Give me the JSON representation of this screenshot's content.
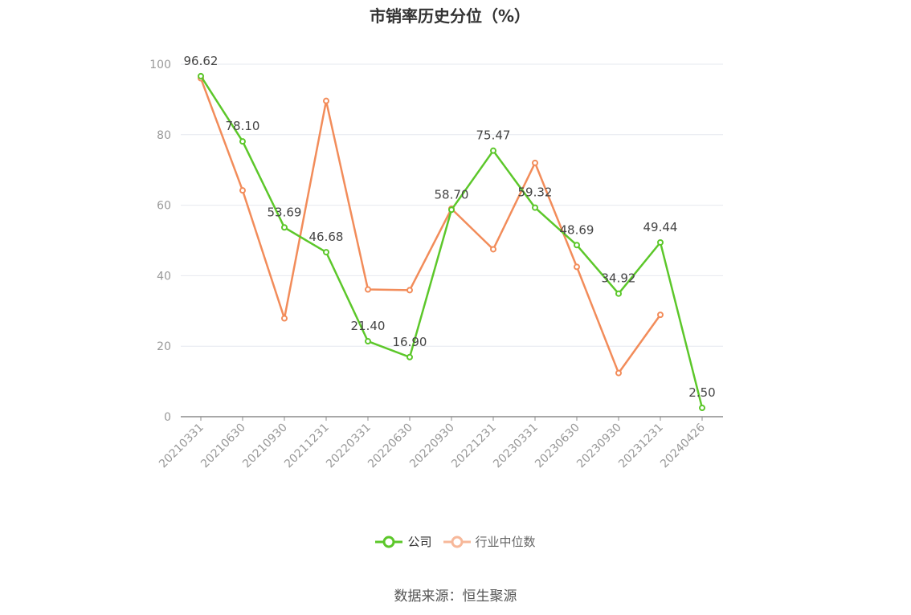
{
  "chart_data": {
    "type": "line",
    "title": "市销率历史分位（%）",
    "categories": [
      "20210331",
      "20210630",
      "20210930",
      "20211231",
      "20220331",
      "20220630",
      "20220930",
      "20221231",
      "20230331",
      "20230630",
      "20230930",
      "20231231",
      "20240426"
    ],
    "ylim": [
      0,
      100
    ],
    "yticks": [
      "0",
      "20",
      "40",
      "60",
      "80",
      "100"
    ],
    "grid": true,
    "legend_position": "bottom",
    "series": [
      {
        "name": "公司",
        "color": "#5cc72a",
        "values": [
          96.62,
          78.1,
          53.69,
          46.68,
          21.4,
          16.9,
          58.7,
          75.47,
          59.32,
          48.69,
          34.92,
          49.44,
          2.5
        ],
        "labels": [
          "96.62",
          "78.10",
          "53.69",
          "46.68",
          "21.40",
          "16.90",
          "58.70",
          "75.47",
          "59.32",
          "48.69",
          "34.92",
          "49.44",
          "2.50"
        ]
      },
      {
        "name": "行业中位数",
        "color": "#f28c5a",
        "values": [
          96.0,
          64.2,
          27.9,
          89.6,
          36.1,
          35.9,
          59.0,
          47.5,
          72.0,
          42.5,
          12.4,
          28.9,
          null
        ]
      }
    ]
  },
  "source_text": "数据来源：恒生聚源"
}
